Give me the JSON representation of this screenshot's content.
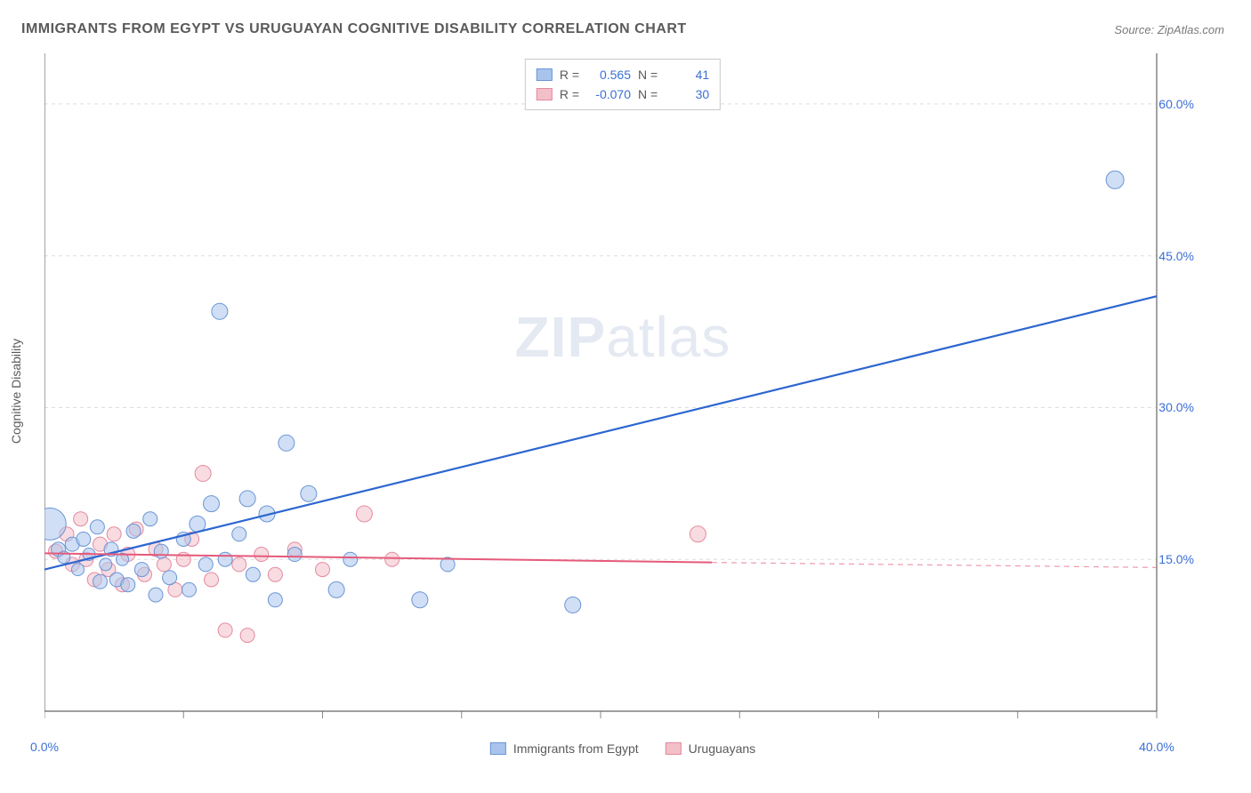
{
  "title": "IMMIGRANTS FROM EGYPT VS URUGUAYAN COGNITIVE DISABILITY CORRELATION CHART",
  "source_label": "Source:",
  "source_value": "ZipAtlas.com",
  "ylabel": "Cognitive Disability",
  "watermark": {
    "bold": "ZIP",
    "rest": "atlas"
  },
  "chart": {
    "type": "scatter",
    "background_color": "#ffffff",
    "axis_color": "#666666",
    "grid_color": "#dedede",
    "grid_dash": "4 4",
    "tick_color": "#888888",
    "xlim": [
      0,
      40
    ],
    "ylim": [
      0,
      65
    ],
    "xticks": [
      0,
      5,
      10,
      15,
      20,
      25,
      30,
      35,
      40
    ],
    "xtick_labels": {
      "0": "0.0%",
      "40": "40.0%"
    },
    "yticks": [
      15,
      30,
      45,
      60
    ],
    "ytick_labels": {
      "15": "15.0%",
      "30": "30.0%",
      "45": "45.0%",
      "60": "60.0%"
    },
    "label_color": "#3b6fd6",
    "label_fontsize": 14
  },
  "series": {
    "egypt": {
      "label": "Immigrants from Egypt",
      "fill": "#a9c4ec",
      "stroke": "#6a95d6",
      "fill_opacity": 0.55,
      "line_color": "#2d66d0",
      "line_width": 2.2,
      "R": "0.565",
      "N": "41",
      "regression": {
        "x1": 0,
        "y1": 14.0,
        "x2": 40,
        "y2": 41.0
      },
      "points": [
        {
          "x": 0.2,
          "y": 18.5,
          "r": 18
        },
        {
          "x": 0.5,
          "y": 16.0,
          "r": 8
        },
        {
          "x": 0.7,
          "y": 15.2,
          "r": 7
        },
        {
          "x": 1.0,
          "y": 16.5,
          "r": 8
        },
        {
          "x": 1.2,
          "y": 14.0,
          "r": 7
        },
        {
          "x": 1.4,
          "y": 17.0,
          "r": 8
        },
        {
          "x": 1.6,
          "y": 15.5,
          "r": 7
        },
        {
          "x": 1.9,
          "y": 18.2,
          "r": 8
        },
        {
          "x": 2.0,
          "y": 12.8,
          "r": 8
        },
        {
          "x": 2.2,
          "y": 14.5,
          "r": 7
        },
        {
          "x": 2.4,
          "y": 16.0,
          "r": 8
        },
        {
          "x": 2.6,
          "y": 13.0,
          "r": 8
        },
        {
          "x": 2.8,
          "y": 15.0,
          "r": 7
        },
        {
          "x": 3.0,
          "y": 12.5,
          "r": 8
        },
        {
          "x": 3.2,
          "y": 17.8,
          "r": 8
        },
        {
          "x": 3.5,
          "y": 14.0,
          "r": 8
        },
        {
          "x": 3.8,
          "y": 19.0,
          "r": 8
        },
        {
          "x": 4.0,
          "y": 11.5,
          "r": 8
        },
        {
          "x": 4.2,
          "y": 15.8,
          "r": 8
        },
        {
          "x": 4.5,
          "y": 13.2,
          "r": 8
        },
        {
          "x": 5.0,
          "y": 17.0,
          "r": 8
        },
        {
          "x": 5.2,
          "y": 12.0,
          "r": 8
        },
        {
          "x": 5.5,
          "y": 18.5,
          "r": 9
        },
        {
          "x": 5.8,
          "y": 14.5,
          "r": 8
        },
        {
          "x": 6.0,
          "y": 20.5,
          "r": 9
        },
        {
          "x": 6.3,
          "y": 39.5,
          "r": 9
        },
        {
          "x": 6.5,
          "y": 15.0,
          "r": 8
        },
        {
          "x": 7.0,
          "y": 17.5,
          "r": 8
        },
        {
          "x": 7.3,
          "y": 21.0,
          "r": 9
        },
        {
          "x": 7.5,
          "y": 13.5,
          "r": 8
        },
        {
          "x": 8.0,
          "y": 19.5,
          "r": 9
        },
        {
          "x": 8.3,
          "y": 11.0,
          "r": 8
        },
        {
          "x": 8.7,
          "y": 26.5,
          "r": 9
        },
        {
          "x": 9.0,
          "y": 15.5,
          "r": 8
        },
        {
          "x": 9.5,
          "y": 21.5,
          "r": 9
        },
        {
          "x": 10.5,
          "y": 12.0,
          "r": 9
        },
        {
          "x": 11.0,
          "y": 15.0,
          "r": 8
        },
        {
          "x": 13.5,
          "y": 11.0,
          "r": 9
        },
        {
          "x": 14.5,
          "y": 14.5,
          "r": 8
        },
        {
          "x": 19.0,
          "y": 10.5,
          "r": 9
        },
        {
          "x": 38.5,
          "y": 52.5,
          "r": 10
        }
      ]
    },
    "uruguay": {
      "label": "Uruguayans",
      "fill": "#f3bfc9",
      "stroke": "#e48aa0",
      "fill_opacity": 0.55,
      "line_color": "#e55a7a",
      "line_width": 2.0,
      "R": "-0.070",
      "N": "30",
      "regression_solid": {
        "x1": 0,
        "y1": 15.6,
        "x2": 24,
        "y2": 14.7
      },
      "regression_dashed": {
        "x1": 24,
        "y1": 14.7,
        "x2": 40,
        "y2": 14.2
      },
      "points": [
        {
          "x": 0.4,
          "y": 15.8,
          "r": 8
        },
        {
          "x": 0.8,
          "y": 17.5,
          "r": 8
        },
        {
          "x": 1.0,
          "y": 14.5,
          "r": 8
        },
        {
          "x": 1.3,
          "y": 19.0,
          "r": 8
        },
        {
          "x": 1.5,
          "y": 15.0,
          "r": 8
        },
        {
          "x": 1.8,
          "y": 13.0,
          "r": 8
        },
        {
          "x": 2.0,
          "y": 16.5,
          "r": 8
        },
        {
          "x": 2.3,
          "y": 14.0,
          "r": 8
        },
        {
          "x": 2.5,
          "y": 17.5,
          "r": 8
        },
        {
          "x": 2.8,
          "y": 12.5,
          "r": 8
        },
        {
          "x": 3.0,
          "y": 15.5,
          "r": 8
        },
        {
          "x": 3.3,
          "y": 18.0,
          "r": 8
        },
        {
          "x": 3.6,
          "y": 13.5,
          "r": 8
        },
        {
          "x": 4.0,
          "y": 16.0,
          "r": 8
        },
        {
          "x": 4.3,
          "y": 14.5,
          "r": 8
        },
        {
          "x": 4.7,
          "y": 12.0,
          "r": 8
        },
        {
          "x": 5.0,
          "y": 15.0,
          "r": 8
        },
        {
          "x": 5.3,
          "y": 17.0,
          "r": 8
        },
        {
          "x": 5.7,
          "y": 23.5,
          "r": 9
        },
        {
          "x": 6.0,
          "y": 13.0,
          "r": 8
        },
        {
          "x": 6.5,
          "y": 8.0,
          "r": 8
        },
        {
          "x": 7.0,
          "y": 14.5,
          "r": 8
        },
        {
          "x": 7.3,
          "y": 7.5,
          "r": 8
        },
        {
          "x": 7.8,
          "y": 15.5,
          "r": 8
        },
        {
          "x": 8.3,
          "y": 13.5,
          "r": 8
        },
        {
          "x": 9.0,
          "y": 16.0,
          "r": 8
        },
        {
          "x": 10.0,
          "y": 14.0,
          "r": 8
        },
        {
          "x": 11.5,
          "y": 19.5,
          "r": 9
        },
        {
          "x": 12.5,
          "y": 15.0,
          "r": 8
        },
        {
          "x": 23.5,
          "y": 17.5,
          "r": 9
        }
      ]
    }
  },
  "legend_stats": {
    "r_label": "R =",
    "n_label": "N ="
  }
}
